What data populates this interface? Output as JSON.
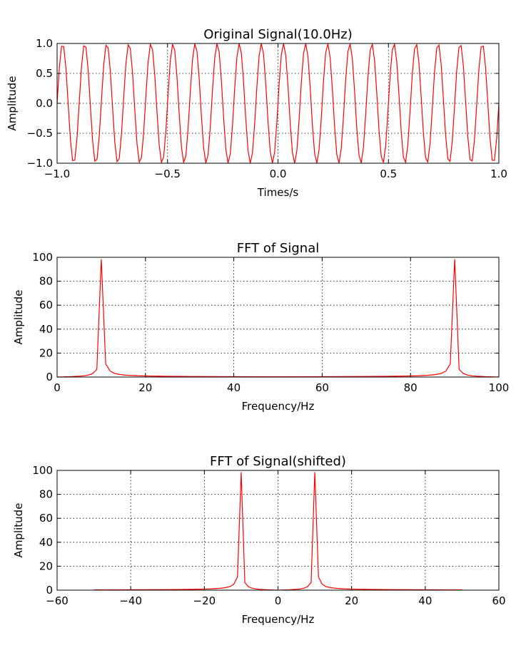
{
  "chart_data": [
    {
      "type": "line",
      "title": "Original Signal(10.0Hz)",
      "xlabel": "Times/s",
      "ylabel": "Amplitude",
      "xlim": [
        -1.0,
        1.0
      ],
      "ylim": [
        -1.0,
        1.0
      ],
      "xticks": [
        -1.0,
        -0.5,
        0.0,
        0.5,
        1.0
      ],
      "xtick_labels": [
        "−1.0",
        "−0.5",
        "0.0",
        "0.5",
        "1.0"
      ],
      "yticks": [
        -1.0,
        -0.5,
        0.0,
        0.5,
        1.0
      ],
      "ytick_labels": [
        "−1.0",
        "−0.5",
        "0.0",
        "0.5",
        "1.0"
      ],
      "grid": true,
      "color": "#ff0000",
      "series": [
        {
          "signal": "sine",
          "frequency_hz": 10.0,
          "amplitude": 1.0,
          "x_start": -1.0,
          "x_end": 1.0,
          "num_samples": 200
        }
      ]
    },
    {
      "type": "line",
      "title": "FFT of Signal",
      "xlabel": "Frequency/Hz",
      "ylabel": "Amplitude",
      "xlim": [
        0,
        100
      ],
      "ylim": [
        0,
        100
      ],
      "xticks": [
        0,
        20,
        40,
        60,
        80,
        100
      ],
      "xtick_labels": [
        "0",
        "20",
        "40",
        "60",
        "80",
        "100"
      ],
      "yticks": [
        0,
        20,
        40,
        60,
        80,
        100
      ],
      "ytick_labels": [
        "0",
        "20",
        "40",
        "60",
        "80",
        "100"
      ],
      "grid": true,
      "color": "#ff0000",
      "series": [
        {
          "x": [
            0,
            1,
            2,
            3,
            4,
            5,
            6,
            7,
            8,
            9,
            10,
            11,
            12,
            13,
            14,
            15,
            16,
            18,
            20,
            25,
            30,
            40,
            50,
            60,
            70,
            75,
            80,
            82,
            84,
            85,
            86,
            87,
            88,
            89,
            90,
            91,
            92,
            93,
            94,
            95,
            96,
            97,
            98,
            99,
            100
          ],
          "y": [
            0.0,
            0.1,
            0.2,
            0.3,
            0.5,
            0.7,
            1.0,
            1.6,
            2.8,
            6.4,
            98.5,
            11.0,
            5.0,
            3.0,
            2.3,
            1.8,
            1.5,
            1.1,
            0.9,
            0.6,
            0.45,
            0.3,
            0.25,
            0.3,
            0.45,
            0.6,
            0.9,
            1.1,
            1.5,
            1.8,
            2.3,
            3.0,
            5.0,
            11.0,
            98.5,
            6.4,
            2.8,
            1.6,
            1.0,
            0.7,
            0.5,
            0.3,
            0.2,
            0.1,
            0.0
          ]
        }
      ]
    },
    {
      "type": "line",
      "title": "FFT of Signal(shifted)",
      "xlabel": "Frequency/Hz",
      "ylabel": "Amplitude",
      "xlim": [
        -60,
        60
      ],
      "ylim": [
        0,
        100
      ],
      "xticks": [
        -60,
        -40,
        -20,
        0,
        20,
        40,
        60
      ],
      "xtick_labels": [
        "−60",
        "−40",
        "−20",
        "0",
        "20",
        "40",
        "60"
      ],
      "yticks": [
        0,
        20,
        40,
        60,
        80,
        100
      ],
      "ytick_labels": [
        "0",
        "20",
        "40",
        "60",
        "80",
        "100"
      ],
      "grid": true,
      "color": "#ff0000",
      "series": [
        {
          "x": [
            -50,
            -40,
            -30,
            -25,
            -20,
            -18,
            -16,
            -15,
            -14,
            -13,
            -12,
            -11,
            -10,
            -9,
            -8,
            -7,
            -6,
            -5,
            -4,
            -3,
            -2,
            -1,
            0,
            1,
            2,
            3,
            4,
            5,
            6,
            7,
            8,
            9,
            10,
            11,
            12,
            13,
            14,
            15,
            16,
            18,
            20,
            25,
            30,
            40,
            50
          ],
          "y": [
            0.25,
            0.3,
            0.45,
            0.6,
            0.9,
            1.1,
            1.5,
            1.8,
            2.3,
            3.0,
            5.0,
            11.0,
            98.5,
            6.4,
            2.8,
            1.6,
            1.0,
            0.7,
            0.5,
            0.3,
            0.2,
            0.1,
            0.0,
            0.1,
            0.2,
            0.3,
            0.5,
            0.7,
            1.0,
            1.6,
            2.8,
            6.4,
            98.5,
            11.0,
            5.0,
            3.0,
            2.3,
            1.8,
            1.5,
            1.1,
            0.9,
            0.6,
            0.45,
            0.3,
            0.25
          ]
        }
      ]
    }
  ]
}
